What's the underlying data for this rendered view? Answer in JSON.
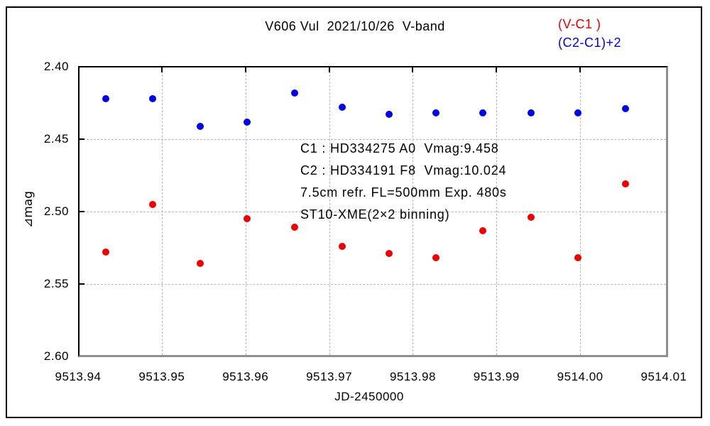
{
  "header": {
    "title": "V606 Vul  2021/10/26  V-band"
  },
  "legend": {
    "items": [
      {
        "label": "(V-C1 )",
        "color": "#e60000"
      },
      {
        "label": "(C2-C1)+2",
        "color": "#0000d4"
      }
    ]
  },
  "annotation": {
    "lines": [
      "C1 : HD334275 A0  Vmag:9.458",
      "C2 : HD334191 F8  Vmag:10.024",
      "7.5cm refr. FL=500mm Exp. 480s",
      "ST10-XME(2×2 binning)"
    ]
  },
  "axes": {
    "x_label": "JD-2450000",
    "y_label": "⊿mag",
    "x_tick_labels": [
      "9513.94",
      "9513.95",
      "9513.96",
      "9513.97",
      "9513.98",
      "9513.99",
      "9514.00",
      "9514.01"
    ],
    "y_tick_labels": [
      "2.40",
      "2.45",
      "2.50",
      "2.55",
      "2.60"
    ]
  },
  "chart_data": {
    "type": "scatter",
    "title": "V606 Vul 2021/10/26 V-band",
    "xlabel": "JD-2450000",
    "ylabel": "⊿mag",
    "xlim": [
      9513.94,
      9514.0105
    ],
    "ylim": [
      2.6,
      2.4
    ],
    "y_axis_inverted": true,
    "x_ticks": [
      9513.94,
      9513.95,
      9513.96,
      9513.97,
      9513.98,
      9513.99,
      9514.0,
      9514.01
    ],
    "y_ticks": [
      2.4,
      2.45,
      2.5,
      2.55,
      2.6
    ],
    "grid": {
      "x_dashed": [
        9513.95,
        9513.96,
        9513.97,
        9513.98,
        9513.99,
        9514.0
      ],
      "y_dashed": [
        2.45,
        2.5,
        2.55
      ]
    },
    "legend_position": "top-right",
    "series": [
      {
        "name": "(V-C1 )",
        "color": "#ee0000",
        "marker": "circle",
        "x": [
          9513.9433,
          9513.9489,
          9513.9546,
          9513.9602,
          9513.9659,
          9513.9716,
          9513.9772,
          9513.9828,
          9513.9884,
          9513.9941,
          9513.9997,
          9514.0054
        ],
        "y": [
          2.528,
          2.495,
          2.536,
          2.505,
          2.511,
          2.524,
          2.529,
          2.532,
          2.513,
          2.504,
          2.532,
          2.481
        ]
      },
      {
        "name": "(C2-C1)+2",
        "color": "#0000e6",
        "marker": "circle",
        "x": [
          9513.9433,
          9513.9489,
          9513.9546,
          9513.9602,
          9513.9659,
          9513.9716,
          9513.9772,
          9513.9828,
          9513.9884,
          9513.9941,
          9513.9997,
          9514.0054
        ],
        "y": [
          2.422,
          2.422,
          2.441,
          2.438,
          2.418,
          2.428,
          2.433,
          2.432,
          2.432,
          2.432,
          2.432,
          2.429
        ]
      }
    ]
  }
}
